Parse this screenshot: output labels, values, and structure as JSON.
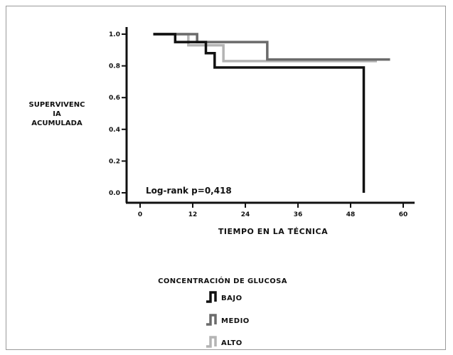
{
  "chart_data": {
    "type": "line",
    "subtype": "kaplan-meier-step",
    "ylabel_lines": [
      "SUPERVIVENC",
      "IA",
      "ACUMULADA"
    ],
    "xlabel": "TIEMPO EN LA TÉCNICA",
    "xlim": [
      0,
      60
    ],
    "ylim": [
      0,
      1
    ],
    "x_ticks": [
      0,
      12,
      24,
      36,
      48,
      60
    ],
    "x_tick_labels": [
      "0",
      "12",
      "24",
      "36",
      "48",
      "60"
    ],
    "y_ticks": [
      0,
      0.2,
      0.4,
      0.6,
      0.8,
      1.0
    ],
    "y_tick_labels": [
      "0.0",
      "0.2",
      "0.4",
      "0.6",
      "0.8",
      "1.0"
    ],
    "grid": false,
    "annotation": "Log-rank  p=0,418",
    "legend": {
      "title": "CONCENTRACIÓN DE GLUCOSA",
      "placement": "bottom"
    },
    "series": [
      {
        "name": "BAJO",
        "color": "#111111",
        "steps": [
          [
            3,
            1.0
          ],
          [
            8,
            0.95
          ],
          [
            15,
            0.88
          ],
          [
            17,
            0.79
          ],
          [
            51,
            0.79
          ],
          [
            51,
            0.0
          ]
        ]
      },
      {
        "name": "MEDIO",
        "color": "#6b6b6b",
        "steps": [
          [
            3,
            1.0
          ],
          [
            13,
            0.95
          ],
          [
            29,
            0.84
          ],
          [
            57,
            0.84
          ]
        ]
      },
      {
        "name": "ALTO",
        "color": "#b4b4b4",
        "steps": [
          [
            3,
            1.0
          ],
          [
            11,
            0.93
          ],
          [
            15,
            0.93
          ],
          [
            19,
            0.83
          ],
          [
            54,
            0.83
          ]
        ]
      }
    ]
  }
}
